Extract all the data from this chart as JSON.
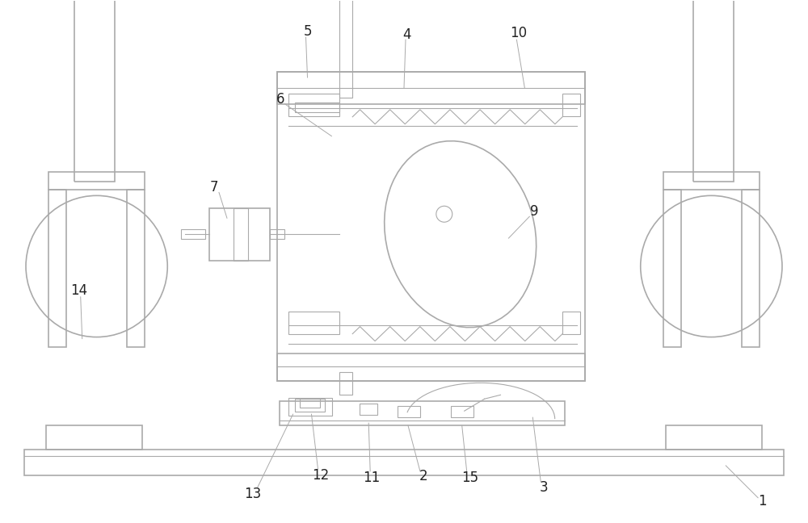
{
  "bg_color": "#ffffff",
  "line_color": "#aaaaaa",
  "line_color_med": "#999999",
  "fig_width": 10.0,
  "fig_height": 6.48,
  "lw_main": 1.2,
  "lw_thin": 0.8,
  "lw_annot": 0.7,
  "label_fs": 12,
  "label_color": "#222222"
}
